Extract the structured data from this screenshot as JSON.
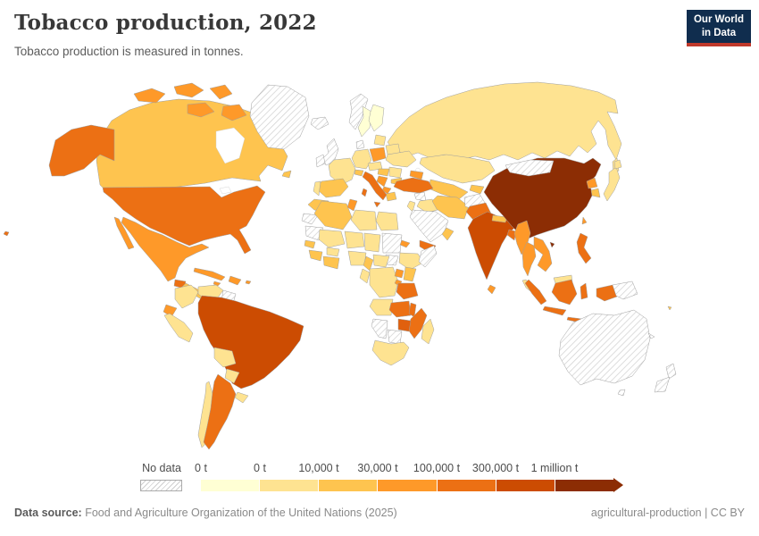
{
  "header": {
    "title": "Tobacco production, 2022",
    "subtitle": "Tobacco production is measured in tonnes."
  },
  "logo": {
    "line1": "Our World",
    "line2": "in Data",
    "bg_color": "#102d4e",
    "accent_color": "#c0392b"
  },
  "legend": {
    "no_data_label": "No data",
    "bins": [
      {
        "label": "0 t",
        "color": "#ffffd4"
      },
      {
        "label": "0 t",
        "color": "#fee391"
      },
      {
        "label": "10,000 t",
        "color": "#fec44f"
      },
      {
        "label": "30,000 t",
        "color": "#fe9929"
      },
      {
        "label": "100,000 t",
        "color": "#ec7014"
      },
      {
        "label": "300,000 t",
        "color": "#cc4c02"
      },
      {
        "label": "1 million t",
        "color": "#8c2d04"
      }
    ]
  },
  "footer": {
    "datasource_label": "Data source:",
    "datasource_text": " Food and Agriculture Organization of the United Nations (2025)",
    "license_text": "agricultural-production | CC BY"
  },
  "map": {
    "border_color": "#9f9f9f",
    "no_data_pattern": "diagonal-hatch",
    "regions": [
      {
        "id": "alaska",
        "name": "United States (Alaska)",
        "bin": 4
      },
      {
        "id": "hawaii",
        "name": "United States (Hawaii)",
        "bin": 4
      },
      {
        "id": "canada",
        "name": "Canada",
        "bin": 2
      },
      {
        "id": "arctic-islands",
        "name": "Canadian Arctic Islands",
        "bin": 3
      },
      {
        "id": "greenland",
        "name": "Greenland",
        "bin": "no-data"
      },
      {
        "id": "usa",
        "name": "United States",
        "bin": 4
      },
      {
        "id": "mexico",
        "name": "Mexico",
        "bin": 3
      },
      {
        "id": "guatemala",
        "name": "Guatemala",
        "bin": 4
      },
      {
        "id": "central-america",
        "name": "Central America",
        "bin": 2
      },
      {
        "id": "cuba",
        "name": "Cuba",
        "bin": 3
      },
      {
        "id": "hispaniola",
        "name": "Dominican Republic / Haiti",
        "bin": 3
      },
      {
        "id": "jamaica",
        "name": "Jamaica",
        "bin": 3
      },
      {
        "id": "puerto-rico",
        "name": "Puerto Rico",
        "bin": 3
      },
      {
        "id": "colombia",
        "name": "Colombia",
        "bin": 1
      },
      {
        "id": "venezuela",
        "name": "Venezuela",
        "bin": 1
      },
      {
        "id": "guyanas",
        "name": "Guyana / Suriname",
        "bin": "no-data"
      },
      {
        "id": "ecuador",
        "name": "Ecuador",
        "bin": 3
      },
      {
        "id": "peru",
        "name": "Peru",
        "bin": 1
      },
      {
        "id": "brazil",
        "name": "Brazil",
        "bin": 5
      },
      {
        "id": "bolivia",
        "name": "Bolivia",
        "bin": 1
      },
      {
        "id": "paraguay",
        "name": "Paraguay",
        "bin": 1
      },
      {
        "id": "uruguay",
        "name": "Uruguay",
        "bin": 1
      },
      {
        "id": "chile",
        "name": "Chile",
        "bin": 1
      },
      {
        "id": "argentina",
        "name": "Argentina",
        "bin": 4
      },
      {
        "id": "iceland",
        "name": "Iceland",
        "bin": "no-data"
      },
      {
        "id": "ireland",
        "name": "Ireland",
        "bin": "no-data"
      },
      {
        "id": "uk",
        "name": "United Kingdom",
        "bin": "no-data"
      },
      {
        "id": "norway",
        "name": "Norway",
        "bin": "no-data"
      },
      {
        "id": "sweden",
        "name": "Sweden",
        "bin": 0
      },
      {
        "id": "finland",
        "name": "Finland",
        "bin": 0
      },
      {
        "id": "denmark",
        "name": "Denmark",
        "bin": "no-data"
      },
      {
        "id": "baltics",
        "name": "Baltic states",
        "bin": 1
      },
      {
        "id": "germany",
        "name": "Germany",
        "bin": 1
      },
      {
        "id": "france",
        "name": "France",
        "bin": 1
      },
      {
        "id": "spain",
        "name": "Spain",
        "bin": 2
      },
      {
        "id": "portugal",
        "name": "Portugal",
        "bin": 1
      },
      {
        "id": "italy",
        "name": "Italy",
        "bin": 4
      },
      {
        "id": "switzerland",
        "name": "Switzerland",
        "bin": 2
      },
      {
        "id": "austria-czech",
        "name": "Austria / Czechia",
        "bin": 1
      },
      {
        "id": "poland",
        "name": "Poland",
        "bin": 3
      },
      {
        "id": "hungary",
        "name": "Hungary",
        "bin": 2
      },
      {
        "id": "romania",
        "name": "Romania",
        "bin": 1
      },
      {
        "id": "serbia",
        "name": "Serbia",
        "bin": 3
      },
      {
        "id": "albania-macedonia",
        "name": "Albania / North Macedonia",
        "bin": 3
      },
      {
        "id": "greece",
        "name": "Greece",
        "bin": 2
      },
      {
        "id": "bulgaria",
        "name": "Bulgaria",
        "bin": 2
      },
      {
        "id": "ukraine",
        "name": "Ukraine",
        "bin": 1
      },
      {
        "id": "belarus",
        "name": "Belarus",
        "bin": 1
      },
      {
        "id": "russia",
        "name": "Russia",
        "bin": 1
      },
      {
        "id": "kazakhstan",
        "name": "Kazakhstan",
        "bin": 1
      },
      {
        "id": "uzbek-turkmen",
        "name": "Uzbekistan / Turkmenistan",
        "bin": 2
      },
      {
        "id": "kyrgyz-tajik",
        "name": "Kyrgyzstan / Tajikistan",
        "bin": 2
      },
      {
        "id": "caucasus",
        "name": "Azerbaijan / Georgia",
        "bin": 3
      },
      {
        "id": "turkey",
        "name": "Turkey",
        "bin": 4
      },
      {
        "id": "syria",
        "name": "Syria",
        "bin": "no-data"
      },
      {
        "id": "iraq",
        "name": "Iraq",
        "bin": 1
      },
      {
        "id": "iran",
        "name": "Iran",
        "bin": 2
      },
      {
        "id": "afghanistan",
        "name": "Afghanistan",
        "bin": "no-data"
      },
      {
        "id": "saudi-arabia",
        "name": "Saudi Arabia",
        "bin": "no-data"
      },
      {
        "id": "yemen",
        "name": "Yemen",
        "bin": 4
      },
      {
        "id": "oman",
        "name": "Oman",
        "bin": 2
      },
      {
        "id": "jordan-israel",
        "name": "Jordan / Israel",
        "bin": 1
      },
      {
        "id": "pakistan",
        "name": "Pakistan",
        "bin": 4
      },
      {
        "id": "india",
        "name": "India",
        "bin": 5
      },
      {
        "id": "nepal",
        "name": "Nepal",
        "bin": 2
      },
      {
        "id": "bangladesh",
        "name": "Bangladesh",
        "bin": 4
      },
      {
        "id": "sri-lanka",
        "name": "Sri Lanka",
        "bin": 3
      },
      {
        "id": "myanmar",
        "name": "Myanmar",
        "bin": 3
      },
      {
        "id": "thailand",
        "name": "Thailand",
        "bin": 3
      },
      {
        "id": "malaysia",
        "name": "Malaysia",
        "bin": 1
      },
      {
        "id": "indochina",
        "name": "Vietnam / Laos / Cambodia",
        "bin": 3
      },
      {
        "id": "china",
        "name": "China",
        "bin": 6
      },
      {
        "id": "mongolia",
        "name": "Mongolia",
        "bin": "no-data"
      },
      {
        "id": "north-korea",
        "name": "North Korea",
        "bin": 3
      },
      {
        "id": "south-korea",
        "name": "South Korea",
        "bin": 2
      },
      {
        "id": "japan",
        "name": "Japan",
        "bin": 1
      },
      {
        "id": "taiwan",
        "name": "Taiwan",
        "bin": 3
      },
      {
        "id": "philippines",
        "name": "Philippines",
        "bin": 4
      },
      {
        "id": "indonesia",
        "name": "Indonesia",
        "bin": 4
      },
      {
        "id": "borneo-malaysia",
        "name": "Malaysia (Borneo)",
        "bin": 1
      },
      {
        "id": "papua-new-guinea",
        "name": "Papua New Guinea",
        "bin": "no-data"
      },
      {
        "id": "australia",
        "name": "Australia",
        "bin": "no-data"
      },
      {
        "id": "new-zealand",
        "name": "New Zealand",
        "bin": "no-data"
      },
      {
        "id": "new-caledonia",
        "name": "New Caledonia",
        "bin": "no-data"
      },
      {
        "id": "fiji",
        "name": "Fiji",
        "bin": 2
      },
      {
        "id": "morocco",
        "name": "Morocco",
        "bin": 2
      },
      {
        "id": "western-sahara",
        "name": "Western Sahara",
        "bin": "no-data"
      },
      {
        "id": "mauritania",
        "name": "Mauritania",
        "bin": "no-data"
      },
      {
        "id": "algeria",
        "name": "Algeria",
        "bin": 2
      },
      {
        "id": "tunisia",
        "name": "Tunisia",
        "bin": 3
      },
      {
        "id": "libya",
        "name": "Libya",
        "bin": 1
      },
      {
        "id": "egypt",
        "name": "Egypt",
        "bin": 1
      },
      {
        "id": "mali",
        "name": "Mali",
        "bin": 1
      },
      {
        "id": "niger",
        "name": "Niger",
        "bin": 1
      },
      {
        "id": "chad",
        "name": "Chad",
        "bin": 1
      },
      {
        "id": "sudan",
        "name": "Sudan",
        "bin": "no-data"
      },
      {
        "id": "south-sudan",
        "name": "South Sudan",
        "bin": "no-data"
      },
      {
        "id": "eritrea",
        "name": "Eritrea",
        "bin": 3
      },
      {
        "id": "ethiopia",
        "name": "Ethiopia",
        "bin": 1
      },
      {
        "id": "somalia",
        "name": "Somalia",
        "bin": "no-data"
      },
      {
        "id": "senegal",
        "name": "Senegal",
        "bin": 2
      },
      {
        "id": "guinea",
        "name": "Guinea",
        "bin": 2
      },
      {
        "id": "cote-ghana",
        "name": "Côte d'Ivoire / Ghana",
        "bin": 2
      },
      {
        "id": "burkina",
        "name": "Burkina Faso",
        "bin": 1
      },
      {
        "id": "nigeria",
        "name": "Nigeria",
        "bin": 1
      },
      {
        "id": "cameroon",
        "name": "Cameroon",
        "bin": 2
      },
      {
        "id": "car",
        "name": "Central African Republic",
        "bin": 1
      },
      {
        "id": "drc",
        "name": "Democratic Republic of Congo",
        "bin": 1
      },
      {
        "id": "gabon-congo",
        "name": "Gabon / Congo",
        "bin": 1
      },
      {
        "id": "uganda",
        "name": "Uganda",
        "bin": 3
      },
      {
        "id": "kenya",
        "name": "Kenya",
        "bin": 2
      },
      {
        "id": "rwanda-burundi",
        "name": "Rwanda / Burundi",
        "bin": 3
      },
      {
        "id": "tanzania",
        "name": "Tanzania",
        "bin": 4
      },
      {
        "id": "angola",
        "name": "Angola",
        "bin": 1
      },
      {
        "id": "zambia",
        "name": "Zambia",
        "bin": 4
      },
      {
        "id": "malawi",
        "name": "Malawi",
        "bin": 4
      },
      {
        "id": "mozambique",
        "name": "Mozambique",
        "bin": 4
      },
      {
        "id": "zimbabwe",
        "name": "Zimbabwe",
        "bin": 4,
        "color": "#e0600e"
      },
      {
        "id": "botswana",
        "name": "Botswana",
        "bin": "no-data"
      },
      {
        "id": "namibia",
        "name": "Namibia",
        "bin": "no-data"
      },
      {
        "id": "south-africa",
        "name": "South Africa",
        "bin": 1
      },
      {
        "id": "madagascar",
        "name": "Madagascar",
        "bin": 1
      }
    ]
  }
}
